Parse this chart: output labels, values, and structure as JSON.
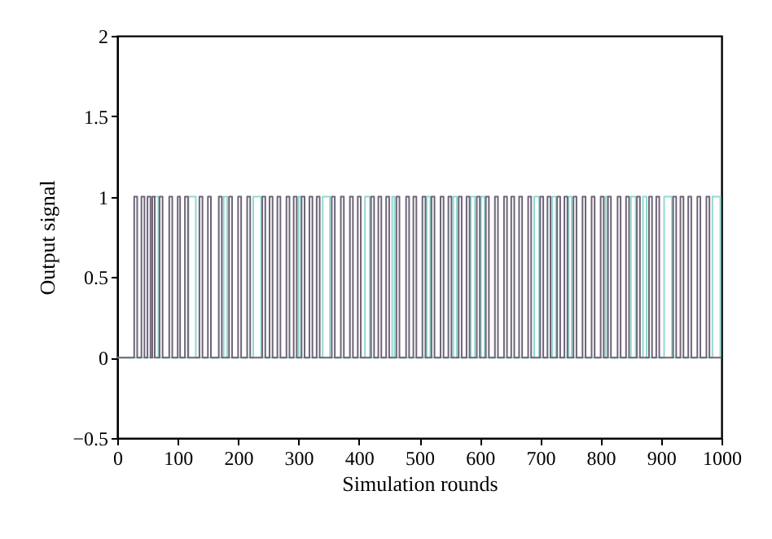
{
  "chart_data": {
    "type": "step",
    "xlabel": "Simulation rounds",
    "ylabel": "Output signal",
    "xlim": [
      0,
      1000
    ],
    "ylim": [
      -0.5,
      2
    ],
    "xticks": [
      0,
      100,
      200,
      300,
      400,
      500,
      600,
      700,
      800,
      900,
      1000
    ],
    "yticks": [
      -0.5,
      0,
      0.5,
      1,
      1.5,
      2
    ],
    "series": [
      {
        "color": "#92d9cf",
        "x": [
          0,
          62,
          68,
          118,
          130,
          176,
          182,
          225,
          238,
          300,
          304,
          340,
          352,
          410,
          418,
          455,
          459,
          512,
          518,
          556,
          562,
          585,
          592,
          602,
          608,
          690,
          698,
          720,
          726,
          747,
          752,
          808,
          812,
          850,
          858,
          870,
          876,
          905,
          918,
          985,
          998,
          1000
        ],
        "values": [
          0,
          1,
          0,
          1,
          0,
          1,
          0,
          1,
          0,
          1,
          0,
          1,
          0,
          1,
          0,
          1,
          0,
          1,
          0,
          1,
          0,
          1,
          0,
          1,
          0,
          1,
          0,
          1,
          0,
          1,
          0,
          1,
          0,
          1,
          0,
          1,
          0,
          1,
          0,
          1,
          0,
          0
        ]
      },
      {
        "color": "#6e6478",
        "x": [
          0,
          28,
          33,
          40,
          45,
          50,
          55,
          58,
          62,
          70,
          75,
          86,
          91,
          100,
          104,
          112,
          117,
          136,
          141,
          150,
          155,
          168,
          173,
          185,
          190,
          200,
          205,
          215,
          220,
          240,
          245,
          252,
          257,
          265,
          270,
          280,
          285,
          292,
          297,
          305,
          310,
          318,
          323,
          330,
          335,
          355,
          360,
          370,
          375,
          385,
          390,
          398,
          403,
          420,
          425,
          432,
          437,
          445,
          450,
          462,
          467,
          478,
          483,
          490,
          495,
          505,
          510,
          520,
          525,
          535,
          540,
          548,
          553,
          565,
          570,
          578,
          583,
          595,
          600,
          610,
          615,
          625,
          630,
          640,
          645,
          652,
          657,
          665,
          670,
          680,
          685,
          700,
          705,
          712,
          717,
          728,
          733,
          740,
          745,
          755,
          760,
          770,
          775,
          785,
          790,
          800,
          805,
          812,
          817,
          828,
          833,
          842,
          847,
          860,
          865,
          880,
          885,
          892,
          897,
          920,
          925,
          932,
          937,
          945,
          950,
          960,
          965,
          975,
          980,
          1000
        ],
        "values": [
          0,
          1,
          0,
          1,
          0,
          1,
          0,
          1,
          0,
          1,
          0,
          1,
          0,
          1,
          0,
          1,
          0,
          1,
          0,
          1,
          0,
          1,
          0,
          1,
          0,
          1,
          0,
          1,
          0,
          1,
          0,
          1,
          0,
          1,
          0,
          1,
          0,
          1,
          0,
          1,
          0,
          1,
          0,
          1,
          0,
          1,
          0,
          1,
          0,
          1,
          0,
          1,
          0,
          1,
          0,
          1,
          0,
          1,
          0,
          1,
          0,
          1,
          0,
          1,
          0,
          1,
          0,
          1,
          0,
          1,
          0,
          1,
          0,
          1,
          0,
          1,
          0,
          1,
          0,
          1,
          0,
          1,
          0,
          1,
          0,
          1,
          0,
          1,
          0,
          1,
          0,
          1,
          0,
          1,
          0,
          1,
          0,
          1,
          0,
          1,
          0,
          1,
          0,
          1,
          0,
          1,
          0,
          1,
          0,
          1,
          0,
          1,
          0,
          1,
          0,
          1,
          0,
          1,
          0,
          1,
          0,
          1,
          0,
          1,
          0,
          1,
          0,
          1,
          0,
          0
        ]
      }
    ]
  }
}
